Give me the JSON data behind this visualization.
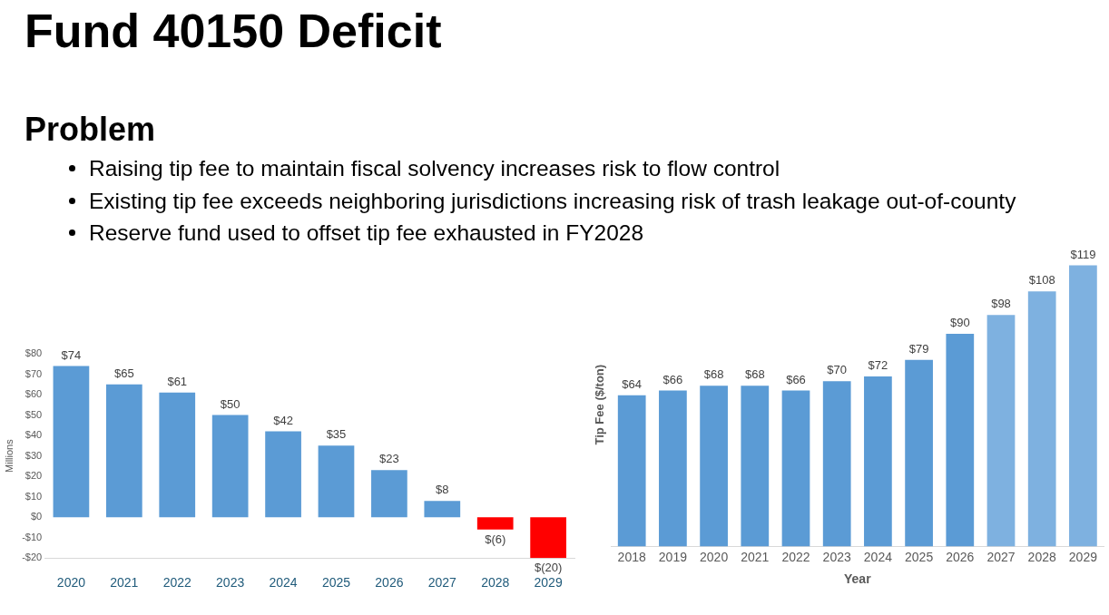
{
  "chart_data": [
    {
      "type": "bar",
      "title": "Fund 40150 Deficit",
      "subtitle": "Problem",
      "annotations": [
        "Raising tip fee to maintain fiscal solvency increases risk to flow control",
        "Existing tip fee exceeds neighboring jurisdictions increasing risk of trash leakage out-of-county",
        "Reserve fund used to offset tip fee exhausted in FY2028"
      ],
      "ylabel": "Millions",
      "categories": [
        "2020",
        "2021",
        "2022",
        "2023",
        "2024",
        "2025",
        "2026",
        "2027",
        "2028",
        "2029"
      ],
      "values": [
        74,
        65,
        61,
        50,
        42,
        35,
        23,
        8,
        -6,
        -20
      ],
      "value_labels": [
        "$74",
        "$65",
        "$61",
        "$50",
        "$42",
        "$35",
        "$23",
        "$8",
        "$(6)",
        "$(20)"
      ],
      "colors": [
        "#5b9bd5",
        "#5b9bd5",
        "#5b9bd5",
        "#5b9bd5",
        "#5b9bd5",
        "#5b9bd5",
        "#5b9bd5",
        "#5b9bd5",
        "#ff0000",
        "#ff0000"
      ],
      "ylim": [
        -20,
        80
      ],
      "yticks": [
        {
          "value": -20,
          "label": "-$20"
        },
        {
          "value": -10,
          "label": "-$10"
        },
        {
          "value": 0,
          "label": "$0"
        },
        {
          "value": 10,
          "label": "$10"
        },
        {
          "value": 20,
          "label": "$20"
        },
        {
          "value": 30,
          "label": "$30"
        },
        {
          "value": 40,
          "label": "$40"
        },
        {
          "value": 50,
          "label": "$50"
        },
        {
          "value": 60,
          "label": "$60"
        },
        {
          "value": 70,
          "label": "$70"
        },
        {
          "value": 80,
          "label": "$80"
        }
      ],
      "grid": false,
      "legend": false
    },
    {
      "type": "bar",
      "xlabel": "Year",
      "ylabel": "Tip Fee ($/ton)",
      "categories": [
        "2018",
        "2019",
        "2020",
        "2021",
        "2022",
        "2023",
        "2024",
        "2025",
        "2026",
        "2027",
        "2028",
        "2029"
      ],
      "values": [
        64,
        66,
        68,
        68,
        66,
        70,
        72,
        79,
        90,
        98,
        108,
        119
      ],
      "value_labels": [
        "$64",
        "$66",
        "$68",
        "$68",
        "$66",
        "$70",
        "$72",
        "$79",
        "$90",
        "$98",
        "$108",
        "$119"
      ],
      "colors": [
        "#5b9bd5",
        "#5b9bd5",
        "#5b9bd5",
        "#5b9bd5",
        "#5b9bd5",
        "#5b9bd5",
        "#5b9bd5",
        "#5b9bd5",
        "#5b9bd5",
        "#7eb1e0",
        "#7eb1e0",
        "#7eb1e0"
      ],
      "tick_labels": "x",
      "grid": false,
      "legend": false
    }
  ]
}
